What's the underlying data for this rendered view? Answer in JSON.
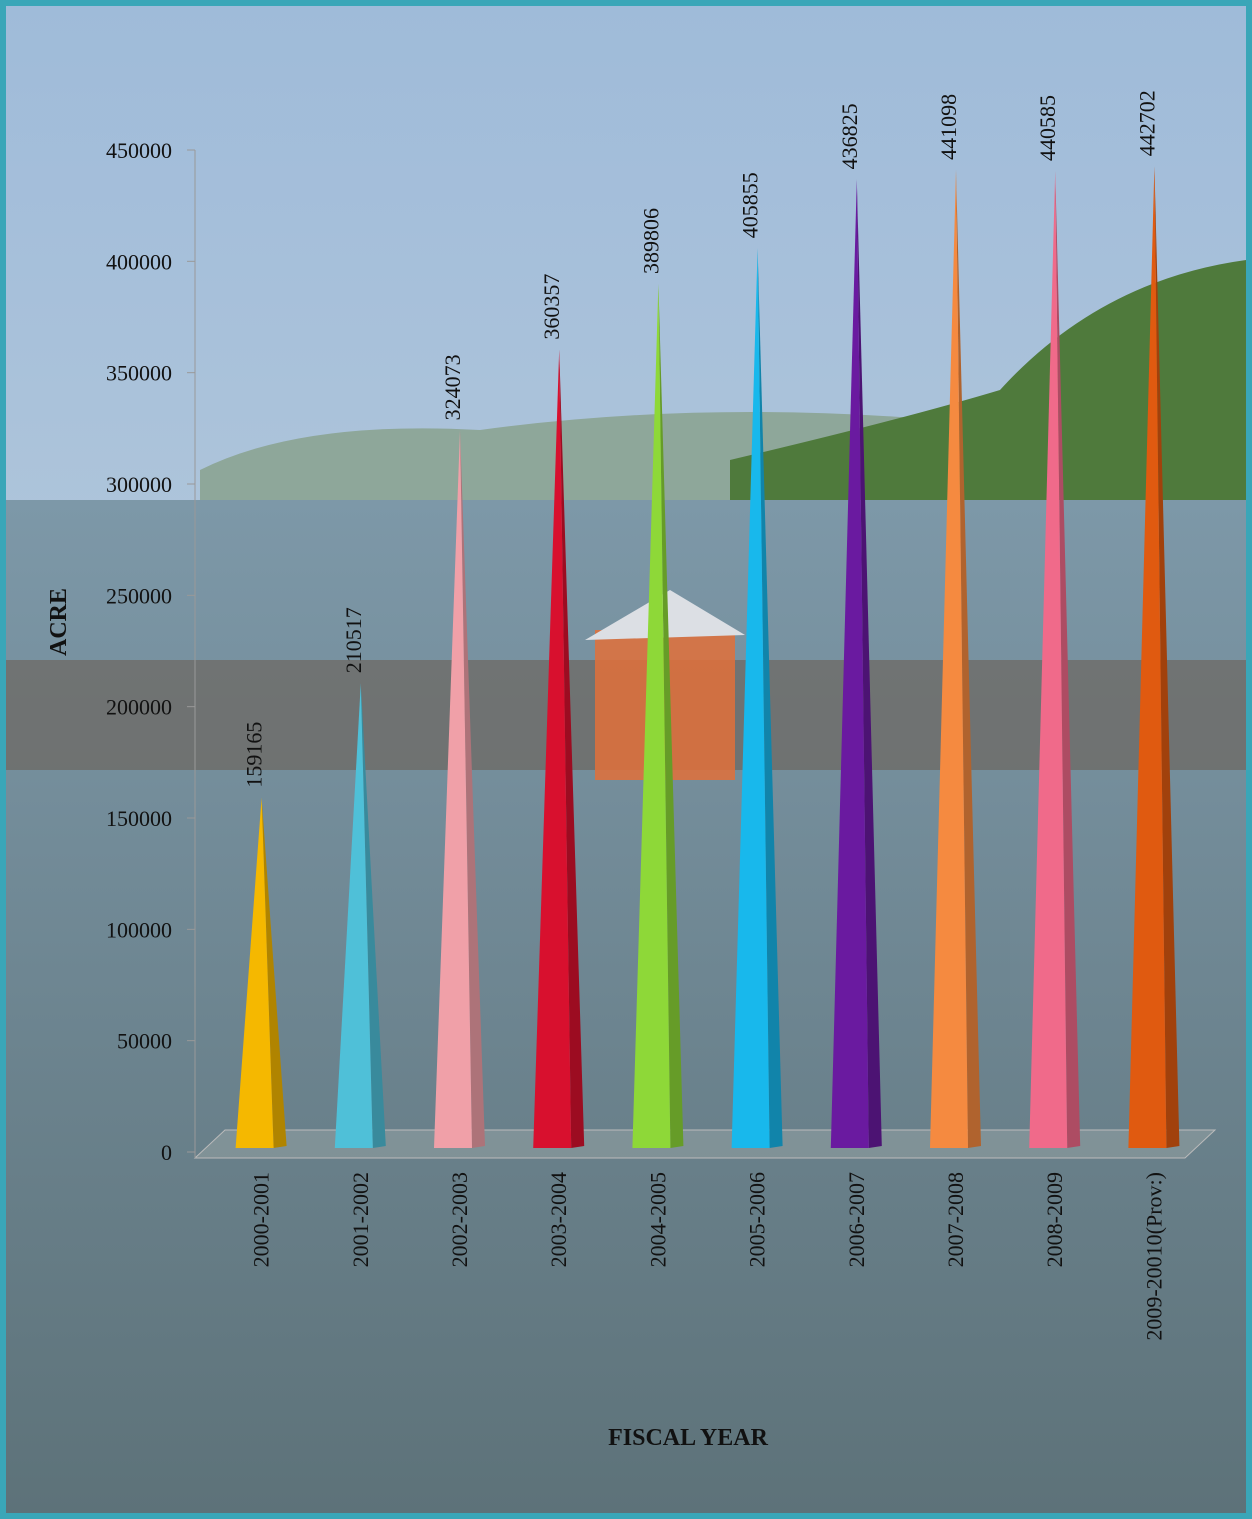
{
  "chart_data": {
    "type": "pyramid",
    "categories": [
      "2000-2001",
      "2001-2002",
      "2002-2003",
      "2003-2004",
      "2004-2005",
      "2005-2006",
      "2006-2007",
      "2007-2008",
      "2008-2009",
      "2009-20010(Prov:)"
    ],
    "values": [
      159165,
      210517,
      324073,
      360357,
      389806,
      405855,
      436825,
      441098,
      440585,
      442702
    ],
    "colors": [
      "#f5b800",
      "#4fc0d8",
      "#f0a0a8",
      "#d8102e",
      "#8ed838",
      "#18b8ec",
      "#6a1aa0",
      "#f58a40",
      "#f06a8a",
      "#e05a10"
    ],
    "ylim": [
      0,
      450000
    ],
    "yticks": [
      0,
      50000,
      100000,
      150000,
      200000,
      250000,
      300000,
      350000,
      400000,
      450000
    ],
    "y_label": "ACRE",
    "x_label": "FISCAL YEAR"
  }
}
